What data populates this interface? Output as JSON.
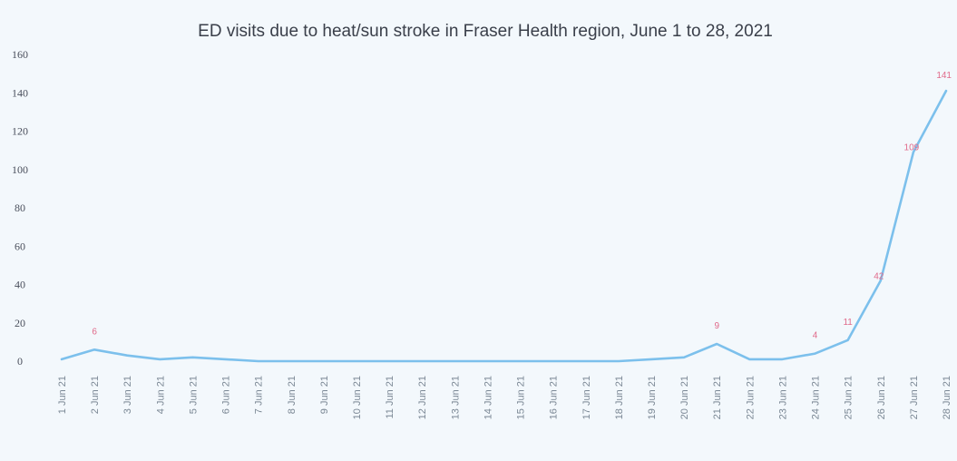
{
  "chart_data": {
    "type": "line",
    "title": "ED visits due to heat/sun stroke in Fraser Health region, June 1 to 28, 2021",
    "xlabel": "",
    "ylabel": "",
    "ylim": [
      0,
      160
    ],
    "yticks": [
      "0",
      "20",
      "40",
      "60",
      "80",
      "100",
      "120",
      "140",
      "160"
    ],
    "grid": false,
    "legend": "none",
    "categories": [
      "1 Jun 21",
      "2 Jun 21",
      "3 Jun 21",
      "4 Jun 21",
      "5 Jun 21",
      "6 Jun 21",
      "7 Jun 21",
      "8 Jun 21",
      "9 Jun 21",
      "10 Jun 21",
      "11 Jun 21",
      "12 Jun 21",
      "13 Jun 21",
      "14 Jun 21",
      "15 Jun 21",
      "16 Jun 21",
      "17 Jun 21",
      "18 Jun 21",
      "19 Jun 21",
      "20 Jun 21",
      "21 Jun 21",
      "22 Jun 21",
      "23 Jun 21",
      "24 Jun 21",
      "25 Jun 21",
      "26 Jun 21",
      "27 Jun 21",
      "28 Jun 21"
    ],
    "series": [
      {
        "color": "#7cc0ec",
        "values": [
          1,
          6,
          3,
          1,
          2,
          1,
          0,
          0,
          0,
          0,
          0,
          0,
          0,
          0,
          0,
          0,
          0,
          0,
          1,
          2,
          9,
          1,
          1,
          4,
          11,
          42,
          109,
          141
        ]
      }
    ],
    "data_labels": [
      {
        "index": 1,
        "text": "6"
      },
      {
        "index": 20,
        "text": "9"
      },
      {
        "index": 23,
        "text": "4"
      },
      {
        "index": 24,
        "text": "11"
      },
      {
        "index": 25,
        "text": "42"
      },
      {
        "index": 26,
        "text": "109"
      },
      {
        "index": 27,
        "text": "141"
      }
    ]
  }
}
